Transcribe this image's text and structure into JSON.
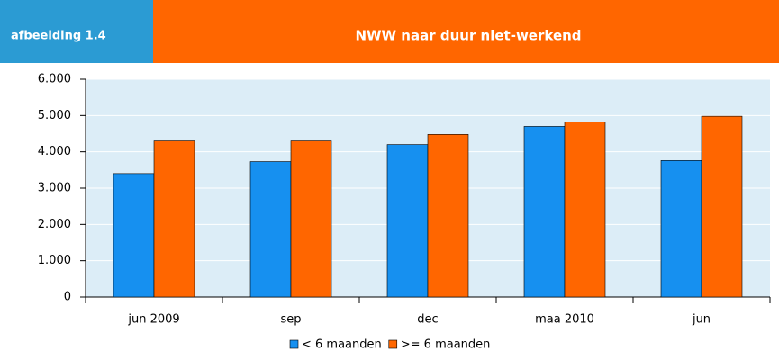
{
  "chart_data": {
    "type": "bar",
    "figure_label": "afbeelding 1.4",
    "title": "NWW naar duur niet-werkend",
    "categories": [
      "jun 2009",
      "sep",
      "dec",
      "maa 2010",
      "jun"
    ],
    "series": [
      {
        "name": "< 6 maanden",
        "color": "#1690f0",
        "values": [
          3400,
          3730,
          4200,
          4700,
          3760
        ]
      },
      {
        "name": ">= 6 maanden",
        "color": "#ff6600",
        "values": [
          4300,
          4300,
          4480,
          4820,
          4980
        ]
      }
    ],
    "ylim": [
      0,
      6000
    ],
    "yticks": [
      0,
      {
        "value": 1000,
        "label": "1.000"
      },
      {
        "value": 2000,
        "label": "2.000"
      },
      {
        "value": 3000,
        "label": "3.000"
      },
      {
        "value": 4000,
        "label": "4.000"
      },
      {
        "value": 5000,
        "label": "5.000"
      },
      {
        "value": 6000,
        "label": "6.000"
      }
    ],
    "grid": true,
    "legend": "bottom"
  }
}
